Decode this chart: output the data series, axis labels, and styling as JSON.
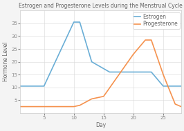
{
  "title": "Estrogen and Progesterone Levels during the Menstrual Cycle",
  "xlabel": "Day",
  "ylabel": "Hormone Level",
  "estrogen_x": [
    1,
    5,
    10,
    11,
    13,
    16,
    20,
    23,
    25,
    28
  ],
  "estrogen_y": [
    10.5,
    10.5,
    35.5,
    35.5,
    20,
    16,
    16,
    16,
    10.5,
    10.5
  ],
  "progesterone_x": [
    1,
    5,
    10,
    11,
    13,
    15,
    20,
    22,
    23,
    25,
    27,
    28
  ],
  "progesterone_y": [
    2.5,
    2.5,
    2.5,
    3.0,
    5.5,
    6.5,
    23,
    28.5,
    28.5,
    15,
    3.5,
    2.5
  ],
  "estrogen_color": "#6aaed6",
  "progesterone_color": "#f5924e",
  "background_color": "#f4f4f4",
  "plot_bg_color": "#ffffff",
  "grid_color": "#d8d8d8",
  "ylim": [
    0,
    40
  ],
  "xlim": [
    1,
    28
  ],
  "xticks": [
    5,
    10,
    15,
    20,
    25
  ],
  "yticks": [
    5,
    10,
    15,
    20,
    25,
    30,
    35
  ],
  "title_fontsize": 5.5,
  "label_fontsize": 5.5,
  "tick_fontsize": 5,
  "legend_fontsize": 5.5,
  "line_width": 1.2
}
